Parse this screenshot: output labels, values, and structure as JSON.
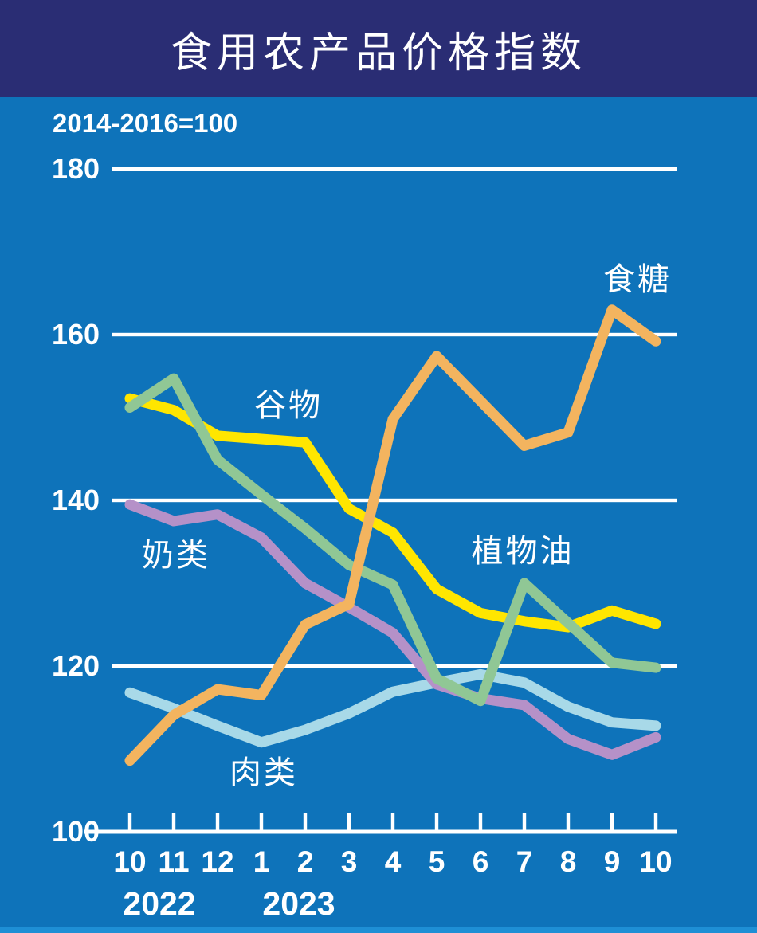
{
  "header": {
    "title": "食用农产品价格指数"
  },
  "chart_data": {
    "type": "line",
    "title": "食用农产品价格指数",
    "subtitle": "2014-2016=100",
    "xlabel": "",
    "ylabel": "",
    "ylim": [
      100,
      186
    ],
    "grid": true,
    "y_ticks": [
      180,
      160,
      140,
      120,
      100
    ],
    "x_tick_labels": [
      "10",
      "11",
      "12",
      "1",
      "2",
      "3",
      "4",
      "5",
      "6",
      "7",
      "8",
      "9",
      "10"
    ],
    "years": [
      {
        "label": "2022"
      },
      {
        "label": "2023"
      }
    ],
    "series": [
      {
        "name": "肉类",
        "color": "#A8D9E8",
        "values": [
          116.8,
          114.9,
          112.8,
          110.8,
          112.3,
          114.3,
          116.9,
          118.0,
          119.0,
          118.0,
          115.1,
          113.2,
          112.8
        ]
      },
      {
        "name": "奶类",
        "color": "#B591C8",
        "values": [
          139.5,
          137.5,
          138.3,
          135.5,
          130.0,
          127.1,
          124.0,
          117.8,
          116.1,
          115.3,
          111.2,
          109.3,
          111.4
        ]
      },
      {
        "name": "谷物",
        "color": "#FFE600",
        "values": [
          152.3,
          150.9,
          147.8,
          147.4,
          147.0,
          139.0,
          136.1,
          129.3,
          126.4,
          125.4,
          124.7,
          126.7,
          125.1
        ]
      },
      {
        "name": "植物油",
        "color": "#90C795",
        "values": [
          151.2,
          154.7,
          144.9,
          140.7,
          136.6,
          132.2,
          129.8,
          118.5,
          115.8,
          130.0,
          125.2,
          120.4,
          119.8
        ]
      },
      {
        "name": "食糖",
        "color": "#F3B45F",
        "values": [
          108.6,
          114.1,
          117.2,
          116.5,
          125.0,
          127.5,
          149.8,
          157.4,
          152.0,
          146.6,
          148.2,
          163.0,
          159.2
        ]
      }
    ]
  },
  "colors": {
    "background": "#0E73BA",
    "header_background": "#2A2D74",
    "footer_strip": "#1E8FD5",
    "text": "#FFFFFF",
    "gridline": "#FFFFFF"
  }
}
